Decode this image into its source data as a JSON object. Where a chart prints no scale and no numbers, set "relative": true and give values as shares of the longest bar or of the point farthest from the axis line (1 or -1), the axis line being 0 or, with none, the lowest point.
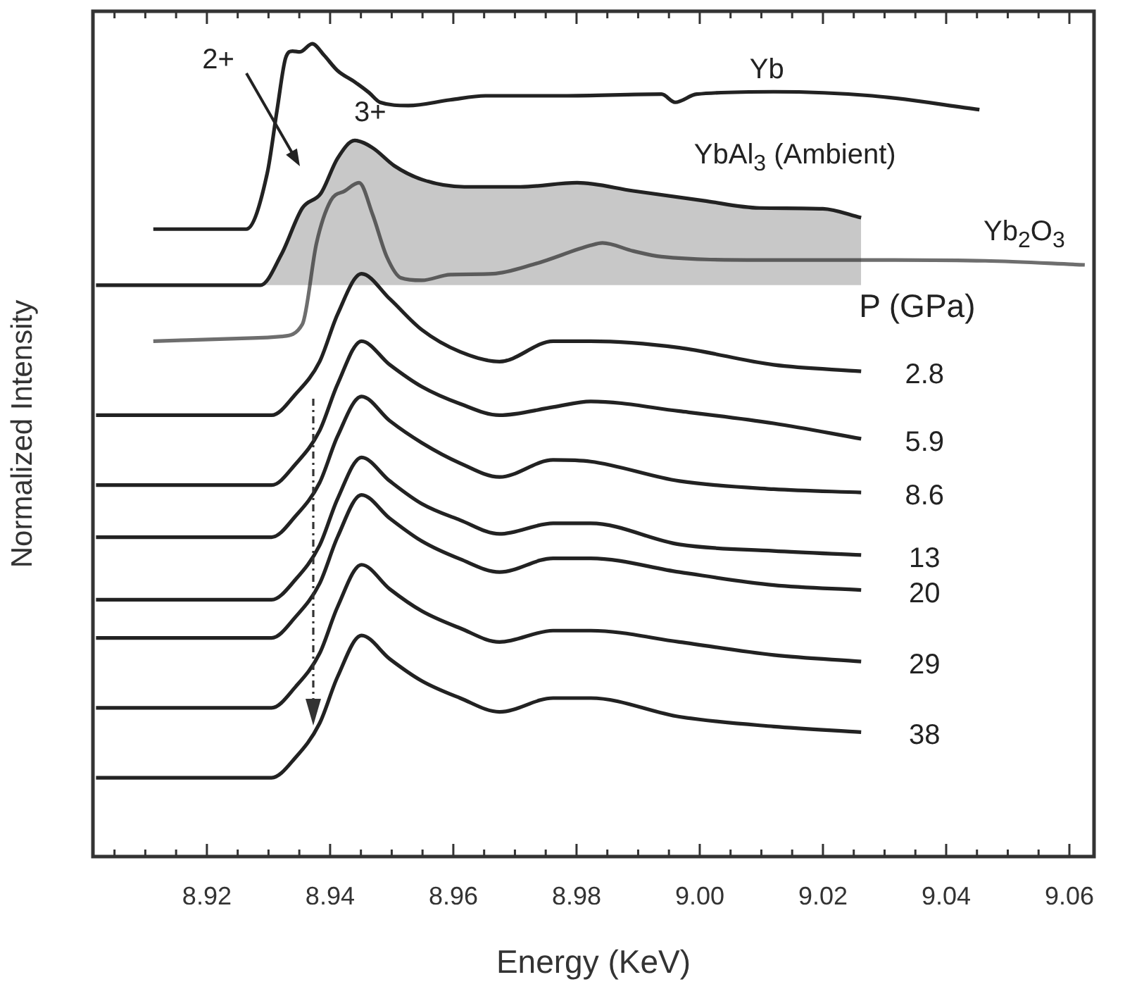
{
  "chart_data": {
    "type": "line",
    "relative": true,
    "xlabel": "Energy (KeV)",
    "ylabel": "Normalized Intensity",
    "legend_title": "P (GPa)",
    "xlim": [
      8.9015,
      9.064
    ],
    "xticks": [
      {
        "value": 8.905,
        "label": null
      },
      {
        "value": 8.91,
        "label": null
      },
      {
        "value": 8.915,
        "label": null
      },
      8.92,
      {
        "value": 8.925,
        "label": null
      },
      {
        "value": 8.93,
        "label": null
      },
      {
        "value": 8.935,
        "label": null
      },
      8.94,
      {
        "value": 8.945,
        "label": null
      },
      {
        "value": 8.95,
        "label": null
      },
      {
        "value": 8.955,
        "label": null
      },
      8.96,
      {
        "value": 8.965,
        "label": null
      },
      {
        "value": 8.97,
        "label": null
      },
      {
        "value": 8.975,
        "label": null
      },
      8.98,
      {
        "value": 8.985,
        "label": null
      },
      {
        "value": 8.99,
        "label": null
      },
      {
        "value": 8.995,
        "label": null
      },
      {
        "value": 9.0,
        "label": "9.00"
      },
      {
        "value": 9.005,
        "label": null
      },
      {
        "value": 9.01,
        "label": null
      },
      {
        "value": 9.015,
        "label": null
      },
      9.02,
      {
        "value": 9.025,
        "label": null
      },
      {
        "value": 9.03,
        "label": null
      },
      {
        "value": 9.035,
        "label": null
      },
      9.04,
      {
        "value": 9.045,
        "label": null
      },
      {
        "value": 9.05,
        "label": null
      },
      {
        "value": 9.055,
        "label": null
      },
      9.06
    ],
    "series": [
      {
        "name": "Yb",
        "color": "#222222",
        "x": [
          8.9113,
          8.9264,
          8.9298,
          8.9314,
          8.9328,
          8.9339,
          8.9351,
          8.9371,
          8.939,
          8.9412,
          8.944,
          8.9463,
          8.9481,
          8.9527,
          8.9595,
          8.9652,
          8.9778,
          8.9938,
          8.996,
          8.9995,
          9.012,
          9.028,
          9.0454
        ],
        "values": [
          0.772,
          0.772,
          0.841,
          0.919,
          0.983,
          0.991,
          0.99,
          1,
          0.986,
          0.967,
          0.953,
          0.94,
          0.928,
          0.924,
          0.931,
          0.936,
          0.936,
          0.938,
          0.928,
          0.938,
          0.941,
          0.936,
          0.919
        ]
      },
      {
        "name": "YbAl$_{3}$ (Ambient)",
        "type": "area",
        "color": "#222222",
        "x": [
          8.902,
          8.9287,
          8.9321,
          8.9355,
          8.9385,
          8.9412,
          8.944,
          8.9469,
          8.9504,
          8.9549,
          8.9618,
          8.9709,
          8.9801,
          8.9892,
          9.0006,
          9.0097,
          9.02,
          9.0262
        ],
        "values": [
          0.703,
          0.703,
          0.741,
          0.798,
          0.816,
          0.859,
          0.881,
          0.872,
          0.85,
          0.833,
          0.824,
          0.824,
          0.829,
          0.819,
          0.807,
          0.798,
          0.797,
          0.786
        ]
      },
      {
        "name": "Yb$_{2}$O$_{3}$",
        "color": "#6e6e6e",
        "x": [
          8.9113,
          8.9275,
          8.9321,
          8.9355,
          8.9378,
          8.9401,
          8.9424,
          8.9447,
          8.9469,
          8.9492,
          8.9515,
          8.9549,
          8.9595,
          8.9664,
          8.9732,
          8.9823,
          8.9842,
          8.9892,
          8.9938,
          9.0097,
          9.028,
          9.0463,
          9.0625
        ],
        "values": [
          0.634,
          0.638,
          0.64,
          0.655,
          0.755,
          0.807,
          0.819,
          0.829,
          0.79,
          0.738,
          0.712,
          0.709,
          0.716,
          0.717,
          0.729,
          0.752,
          0.755,
          0.745,
          0.738,
          0.734,
          0.734,
          0.733,
          0.728
        ]
      },
      {
        "name": "2.8",
        "color": "#222222",
        "x": [
          8.902,
          8.9305,
          8.9344,
          8.9383,
          8.9412,
          8.9451,
          8.9497,
          8.9549,
          8.9611,
          8.9675,
          8.9762,
          8.9823,
          8.9967,
          9.012,
          9.0262
        ],
        "values": [
          0.543,
          0.543,
          0.569,
          0.609,
          0.667,
          0.717,
          0.686,
          0.648,
          0.621,
          0.609,
          0.634,
          0.634,
          0.626,
          0.605,
          0.597
        ]
      },
      {
        "name": "5.9",
        "color": "#222222",
        "x": [
          8.902,
          8.9305,
          8.9344,
          8.9383,
          8.9412,
          8.9451,
          8.9497,
          8.9549,
          8.9611,
          8.9675,
          8.9762,
          8.9823,
          8.9967,
          9.012,
          9.0262
        ],
        "values": [
          0.457,
          0.457,
          0.483,
          0.524,
          0.581,
          0.634,
          0.605,
          0.578,
          0.557,
          0.543,
          0.553,
          0.56,
          0.548,
          0.533,
          0.514
        ]
      },
      {
        "name": "8.6",
        "color": "#222222",
        "x": [
          8.902,
          8.9305,
          8.9344,
          8.9383,
          8.9412,
          8.9451,
          8.9497,
          8.9549,
          8.9611,
          8.9675,
          8.9762,
          8.9823,
          8.9967,
          9.012,
          9.0262
        ],
        "values": [
          0.393,
          0.393,
          0.419,
          0.46,
          0.517,
          0.566,
          0.536,
          0.509,
          0.484,
          0.467,
          0.488,
          0.486,
          0.462,
          0.452,
          0.448
        ]
      },
      {
        "name": "13",
        "color": "#222222",
        "x": [
          8.902,
          8.9305,
          8.9344,
          8.9383,
          8.9412,
          8.9451,
          8.9497,
          8.9549,
          8.9611,
          8.9675,
          8.9762,
          8.9823,
          8.9967,
          9.012,
          9.0262
        ],
        "values": [
          0.316,
          0.316,
          0.341,
          0.383,
          0.44,
          0.491,
          0.462,
          0.434,
          0.414,
          0.397,
          0.41,
          0.41,
          0.384,
          0.376,
          0.371
        ]
      },
      {
        "name": "20",
        "color": "#222222",
        "x": [
          8.902,
          8.9305,
          8.9344,
          8.9383,
          8.9412,
          8.9451,
          8.9497,
          8.9549,
          8.9611,
          8.9675,
          8.9762,
          8.9823,
          8.9967,
          9.012,
          9.0262
        ],
        "values": [
          0.269,
          0.269,
          0.295,
          0.336,
          0.393,
          0.445,
          0.416,
          0.388,
          0.366,
          0.35,
          0.367,
          0.367,
          0.35,
          0.334,
          0.328
        ]
      },
      {
        "name": "29",
        "color": "#222222",
        "x": [
          8.902,
          8.9305,
          8.9344,
          8.9383,
          8.9412,
          8.9451,
          8.9497,
          8.9549,
          8.9611,
          8.9675,
          8.9762,
          8.9823,
          8.9967,
          9.012,
          9.0262
        ],
        "values": [
          0.183,
          0.183,
          0.209,
          0.25,
          0.307,
          0.359,
          0.329,
          0.302,
          0.281,
          0.264,
          0.278,
          0.278,
          0.264,
          0.248,
          0.24
        ]
      },
      {
        "name": "38",
        "color": "#222222",
        "x": [
          8.902,
          8.9305,
          8.9344,
          8.9383,
          8.9412,
          8.9451,
          8.9497,
          8.9549,
          8.9611,
          8.9675,
          8.9762,
          8.9823,
          8.9967,
          9.012,
          9.0262
        ],
        "values": [
          0.097,
          0.097,
          0.122,
          0.164,
          0.221,
          0.272,
          0.243,
          0.216,
          0.195,
          0.178,
          0.195,
          0.195,
          0.172,
          0.16,
          0.153
        ]
      }
    ],
    "annotations": [
      "2+",
      {
        "text": "3+",
        "x": 8.944,
        "y": 0.881
      }
    ]
  }
}
